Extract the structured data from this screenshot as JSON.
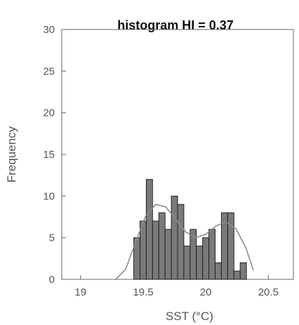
{
  "chart_data": {
    "type": "bar",
    "title": "histogram HI = 0.37",
    "xlabel": "SST (°C)",
    "ylabel": "Frequency",
    "xlim": [
      18.85,
      20.7
    ],
    "ylim": [
      0,
      30
    ],
    "xticks": [
      19,
      19.5,
      20,
      20.5
    ],
    "xtick_labels": [
      "19",
      "19.5",
      "20",
      "20.5"
    ],
    "yticks": [
      0,
      5,
      10,
      15,
      20,
      25,
      30
    ],
    "ytick_labels": [
      "0",
      "5",
      "10",
      "15",
      "20",
      "25",
      "30"
    ],
    "grid": false,
    "bins": [
      {
        "left": 19.425,
        "right": 19.475,
        "value": 5
      },
      {
        "left": 19.475,
        "right": 19.525,
        "value": 7
      },
      {
        "left": 19.525,
        "right": 19.575,
        "value": 12
      },
      {
        "left": 19.575,
        "right": 19.625,
        "value": 7
      },
      {
        "left": 19.625,
        "right": 19.675,
        "value": 8
      },
      {
        "left": 19.675,
        "right": 19.725,
        "value": 6
      },
      {
        "left": 19.725,
        "right": 19.775,
        "value": 10
      },
      {
        "left": 19.775,
        "right": 19.825,
        "value": 9
      },
      {
        "left": 19.825,
        "right": 19.875,
        "value": 4
      },
      {
        "left": 19.875,
        "right": 19.925,
        "value": 6
      },
      {
        "left": 19.925,
        "right": 19.975,
        "value": 4
      },
      {
        "left": 19.975,
        "right": 20.025,
        "value": 5
      },
      {
        "left": 20.025,
        "right": 20.075,
        "value": 6
      },
      {
        "left": 20.075,
        "right": 20.125,
        "value": 2
      },
      {
        "left": 20.125,
        "right": 20.175,
        "value": 8
      },
      {
        "left": 20.175,
        "right": 20.225,
        "value": 8
      },
      {
        "left": 20.225,
        "right": 20.275,
        "value": 1
      },
      {
        "left": 20.275,
        "right": 20.325,
        "value": 2
      }
    ],
    "fit_curve": {
      "type": "bimodal",
      "points": [
        {
          "x": 19.28,
          "y": 0
        },
        {
          "x": 19.36,
          "y": 1.2
        },
        {
          "x": 19.44,
          "y": 4.5
        },
        {
          "x": 19.52,
          "y": 7.6
        },
        {
          "x": 19.6,
          "y": 9.0
        },
        {
          "x": 19.68,
          "y": 8.7
        },
        {
          "x": 19.76,
          "y": 7.2
        },
        {
          "x": 19.84,
          "y": 5.7
        },
        {
          "x": 19.92,
          "y": 5.0
        },
        {
          "x": 20.0,
          "y": 5.4
        },
        {
          "x": 20.08,
          "y": 6.4
        },
        {
          "x": 20.16,
          "y": 6.9
        },
        {
          "x": 20.24,
          "y": 6.1
        },
        {
          "x": 20.32,
          "y": 3.8
        },
        {
          "x": 20.38,
          "y": 1.1
        }
      ]
    },
    "colors": {
      "bar_fill": "#7a7a7a",
      "bar_edge": "#222222",
      "axis": "#666666",
      "curve": "#8c8c8c",
      "text": "#555555"
    }
  }
}
